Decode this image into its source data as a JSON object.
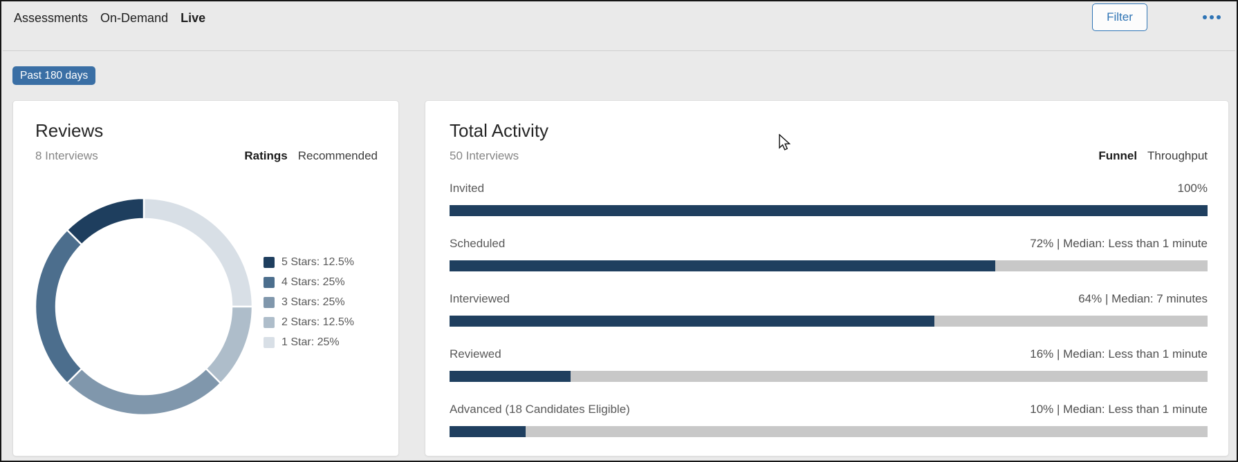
{
  "colors": {
    "page_background": "#eaeaea",
    "accent_blue": "#2e74b5",
    "badge_blue": "#3a6fa5",
    "bar_navy": "#1f3f5f",
    "bar_track": "#c8c8c8"
  },
  "header": {
    "nav_tabs": [
      {
        "label": "Assessments",
        "active": false
      },
      {
        "label": "On-Demand",
        "active": false
      },
      {
        "label": "Live",
        "active": true
      }
    ],
    "filter_button_label": "Filter",
    "more_menu_icon": "ellipsis-icon"
  },
  "filters": {
    "date_range_badge": "Past 180 days"
  },
  "reviews_card": {
    "title": "Reviews",
    "subtitle": "8 Interviews",
    "tabs": [
      {
        "label": "Ratings",
        "active": true
      },
      {
        "label": "Recommended",
        "active": false
      }
    ]
  },
  "activity_card": {
    "title": "Total Activity",
    "subtitle": "50 Interviews",
    "tabs": [
      {
        "label": "Funnel",
        "active": true
      },
      {
        "label": "Throughput",
        "active": false
      }
    ]
  },
  "chart_data": [
    {
      "type": "pie",
      "card": "reviews",
      "title": "Reviews - Ratings",
      "donut": true,
      "legend_position": "right",
      "arrangement": "segments run counterclockwise from 12 o'clock in legend order (5 Stars at top-left, 1 Star filling the upper-right quadrant)",
      "labels": [
        "5 Stars",
        "4 Stars",
        "3 Stars",
        "2 Stars",
        "1 Star"
      ],
      "values": [
        12.5,
        25,
        25,
        12.5,
        25
      ],
      "legend_entries": [
        "5 Stars: 12.5%",
        "4 Stars: 25%",
        "3 Stars: 25%",
        "2 Stars: 12.5%",
        "1 Star: 25%"
      ],
      "colors": [
        "#1e3e5e",
        "#4c6e8d",
        "#8097ac",
        "#aebdca",
        "#d8dfe6"
      ],
      "total_interviews": 8
    },
    {
      "type": "bar",
      "card": "total-activity",
      "title": "Total Activity - Funnel",
      "orientation": "horizontal",
      "xlim": [
        0,
        100
      ],
      "grid": false,
      "bar_color": "#1f3f5f",
      "track_color": "#c8c8c8",
      "categories": [
        "Invited",
        "Scheduled",
        "Interviewed",
        "Reviewed",
        "Advanced (18 Candidates Eligible)"
      ],
      "values": [
        100,
        72,
        64,
        16,
        10
      ],
      "value_labels": [
        "100%",
        "72% | Median: Less than 1 minute",
        "64% | Median: 7 minutes",
        "16% | Median: Less than 1 minute",
        "10% | Median: Less than 1 minute"
      ],
      "total_interviews": 50
    }
  ]
}
